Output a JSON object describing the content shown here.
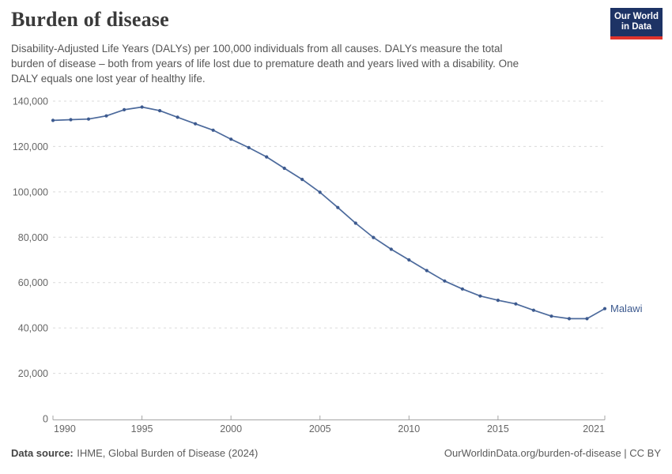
{
  "header": {
    "title": "Burden of disease",
    "subtitle_lines": [
      "Disability-Adjusted Life Years (DALYs) per 100,000 individuals from all causes. DALYs measure the total",
      "burden of disease – both from years of life lost due to premature death and years lived with a disability. One",
      "DALY equals one lost year of healthy life."
    ],
    "logo": {
      "line1": "Our World",
      "line2": "in Data"
    }
  },
  "footer": {
    "source_label": "Data source:",
    "source_text": "IHME, Global Burden of Disease (2024)",
    "link_text": "OurWorldinData.org/burden-of-disease | CC BY"
  },
  "colors": {
    "line": "#4c6a9c",
    "dot": "#3d5a8f",
    "series_label": "#3d5a8f",
    "grid": "#dadada",
    "axis": "#a5a5a5",
    "tick_text": "#666666",
    "logo_bg": "#1d3365",
    "logo_red": "#e0342c"
  },
  "chart_data": {
    "type": "line",
    "title": "Burden of disease",
    "xlabel": "",
    "ylabel": "DALYs per 100,000 individuals",
    "xlim": [
      1990,
      2021
    ],
    "ylim": [
      0,
      140000
    ],
    "grid": "horizontal dashed gridlines, no vertical gridlines",
    "legend": "inline label at end of line",
    "x": [
      1990,
      1991,
      1992,
      1993,
      1994,
      1995,
      1996,
      1997,
      1998,
      1999,
      2000,
      2001,
      2002,
      2003,
      2004,
      2005,
      2006,
      2007,
      2008,
      2009,
      2010,
      2011,
      2012,
      2013,
      2014,
      2015,
      2016,
      2017,
      2018,
      2019,
      2020,
      2021
    ],
    "series": [
      {
        "name": "Malawi",
        "values": [
          131500,
          131800,
          132100,
          133500,
          136200,
          137400,
          135800,
          132900,
          130000,
          127200,
          123200,
          119500,
          115400,
          110400,
          105500,
          99800,
          93100,
          86200,
          79900,
          74700,
          70000,
          65300,
          60700,
          57200,
          54100,
          52200,
          50600,
          47800,
          45200,
          44100,
          44100,
          48500
        ]
      }
    ],
    "y_ticks": [
      {
        "value": 0,
        "label": "0"
      },
      {
        "value": 20000,
        "label": "20,000"
      },
      {
        "value": 40000,
        "label": "40,000"
      },
      {
        "value": 60000,
        "label": "60,000"
      },
      {
        "value": 80000,
        "label": "80,000"
      },
      {
        "value": 100000,
        "label": "100,000"
      },
      {
        "value": 120000,
        "label": "120,000"
      },
      {
        "value": 140000,
        "label": "140,000"
      }
    ],
    "x_ticks": [
      {
        "value": 1990,
        "label": "1990"
      },
      {
        "value": 1995,
        "label": "1995"
      },
      {
        "value": 2000,
        "label": "2000"
      },
      {
        "value": 2005,
        "label": "2005"
      },
      {
        "value": 2010,
        "label": "2010"
      },
      {
        "value": 2015,
        "label": "2015"
      },
      {
        "value": 2021,
        "label": "2021"
      }
    ]
  }
}
